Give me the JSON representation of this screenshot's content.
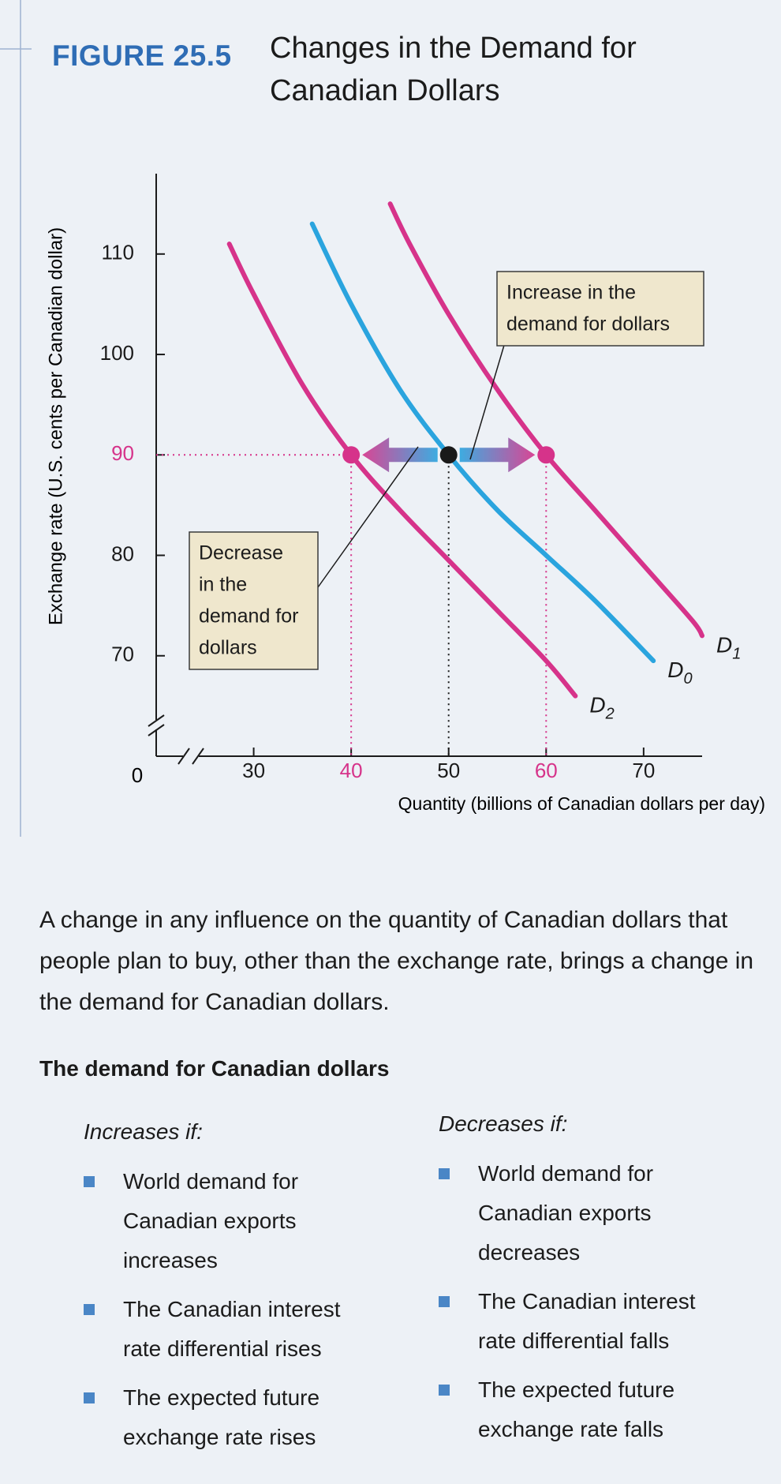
{
  "figure_label": "FIGURE 25.5",
  "chart_data": {
    "type": "line",
    "title": "Changes in the Demand for Canadian Dollars",
    "x_label": "Quantity (billions of Canadian dollars per day)",
    "y_label": "Exchange rate (U.S. cents per Canadian dollar)",
    "origin_label": "0",
    "xlim": [
      20,
      76
    ],
    "ylim": [
      60,
      118
    ],
    "xticks": [
      30,
      40,
      50,
      60,
      70
    ],
    "yticks": [
      70,
      80,
      90,
      100,
      110
    ],
    "axis_break": true,
    "series": [
      {
        "name": "D1",
        "color": "#d6338a",
        "x": [
          44,
          46,
          50,
          55,
          60,
          65,
          70,
          75,
          76
        ],
        "values": [
          115,
          111,
          104,
          96.5,
          90,
          84.5,
          79,
          73.5,
          72
        ]
      },
      {
        "name": "D0",
        "color": "#2aa4de",
        "x": [
          36,
          40,
          45,
          50,
          55,
          60,
          65,
          71
        ],
        "values": [
          113,
          105,
          96.5,
          90,
          84.5,
          80,
          75.5,
          69.5
        ]
      },
      {
        "name": "D2",
        "color": "#d6338a",
        "x": [
          27.5,
          30,
          35,
          40,
          45,
          50,
          55,
          60,
          63
        ],
        "values": [
          111,
          106,
          97,
          90,
          84.5,
          79.5,
          74.5,
          69.5,
          66
        ]
      }
    ],
    "points": [
      {
        "x": 40,
        "y": 90,
        "color": "#d6338a"
      },
      {
        "x": 50,
        "y": 90,
        "color": "#1a1a1a"
      },
      {
        "x": 60,
        "y": 90,
        "color": "#d6338a"
      }
    ],
    "annotations": [
      {
        "lines": [
          "Increase in the",
          "demand for dollars"
        ]
      },
      {
        "lines": [
          "Decrease",
          "in the",
          "demand for",
          "dollars"
        ]
      }
    ]
  },
  "caption": "A change in any influence on the quantity of Canadian dollars that people plan to buy, other than the exchange rate, brings a change in the demand for Canadian dollars.",
  "summary": {
    "heading": "The demand for Canadian dollars",
    "columns": [
      {
        "heading": "Increases if:",
        "items": [
          "World demand for Canadian exports increases",
          "The Canadian interest rate differential rises",
          "The expected future exchange rate rises"
        ]
      },
      {
        "heading": "Decreases if:",
        "items": [
          "World demand for Canadian exports decreases",
          "The Canadian interest rate differential falls",
          "The expected future exchange rate falls"
        ]
      }
    ]
  }
}
